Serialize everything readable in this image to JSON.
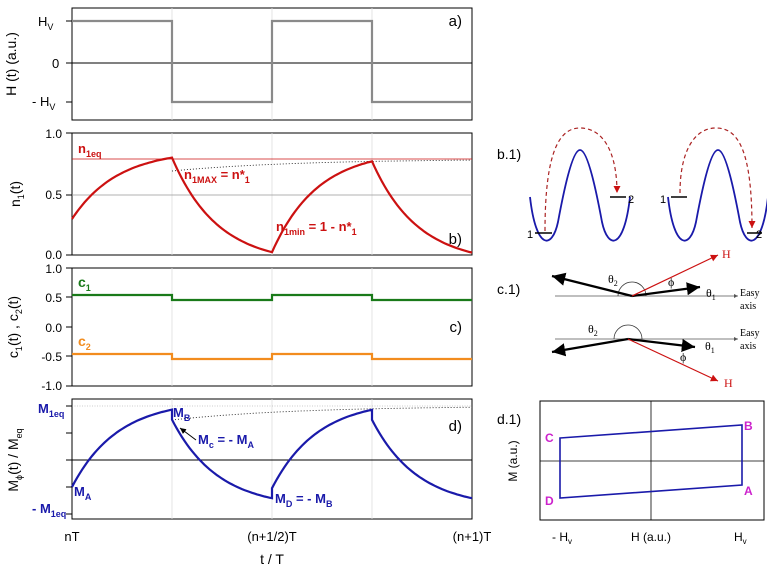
{
  "colors": {
    "axis": "#000000",
    "field": "#8a8a8a",
    "red": "#cc1111",
    "green": "#1a7a1a",
    "orange": "#f28c1e",
    "blue": "#1a1aaa",
    "magenta": "#cc22cc",
    "grid": "#cccccc"
  },
  "panels": {
    "a": {
      "label": "a)",
      "ylabel": "H (t) (a.u.)",
      "yticks": [
        {
          "base": "H",
          "sub": "V",
          "v": 1
        },
        {
          "base": "0",
          "sub": "",
          "v": 0
        },
        {
          "base": "- H",
          "sub": "V",
          "v": -1
        }
      ]
    },
    "b": {
      "label": "b)",
      "ylabel_base": "n",
      "ylabel_sub": "1",
      "ylabel_rest": "(t)",
      "yticks": [
        "1.0",
        "0.5",
        "0.0"
      ],
      "neq_base": "n",
      "neq_sub": "1eq",
      "nmax_base": "n",
      "nmax_sub": "1MAX",
      "nmax_rest": " = n*",
      "nmax_sub2": "1",
      "nmin_base": "n",
      "nmin_sub": "1min",
      "nmin_rest": " = 1 - n*",
      "nmin_sub2": "1"
    },
    "c": {
      "label": "c)",
      "ylabel_parts": [
        "c",
        "1",
        "(t) , c",
        "2",
        "(t)"
      ],
      "yticks": [
        "1.0",
        "0.5",
        "0.0",
        "-0.5",
        "-1.0"
      ],
      "c1_base": "c",
      "c1_sub": "1",
      "c2_base": "c",
      "c2_sub": "2"
    },
    "d": {
      "label": "d)",
      "ylabel_parts": [
        "M",
        "ϕ",
        "(t) / M",
        "eq"
      ],
      "m1eq_base": "M",
      "m1eq_sub": "1eq",
      "mneg_base": "- M",
      "mneg_sub": "1eq",
      "ma_base": "M",
      "ma_sub": "A",
      "mb_base": "M",
      "mb_sub": "B",
      "mc_base": "M",
      "mc_sub": "c",
      "mc_rest": " = - M",
      "mc_sub2": "A",
      "md_base": "M",
      "md_sub": "D",
      "md_rest": " = - M",
      "md_sub2": "B"
    }
  },
  "xaxis": {
    "title": "t / T",
    "ticks": [
      "nT",
      "(n+1/2)T",
      "(n+1)T"
    ]
  },
  "schemes": {
    "b1": {
      "label": "b.1)",
      "well_left": "1",
      "well_right": "2"
    },
    "b1b": {
      "well_left": "1",
      "well_right": "2"
    },
    "c1": {
      "label": "c.1)",
      "H": "H",
      "phi": "ϕ",
      "theta1": "θ",
      "theta1_sub": "1",
      "theta2": "θ",
      "theta2_sub": "2",
      "easy1": "Easy",
      "easy2": "axis"
    },
    "d1": {
      "label": "d.1)",
      "ylabel": "M (a.u.)",
      "xlabel": "H (a.u.)",
      "xtick_left_base": "- H",
      "xtick_left_sub": "v",
      "xtick_right_base": "H",
      "xtick_right_sub": "v",
      "A": "A",
      "B": "B",
      "C": "C",
      "D": "D"
    }
  }
}
